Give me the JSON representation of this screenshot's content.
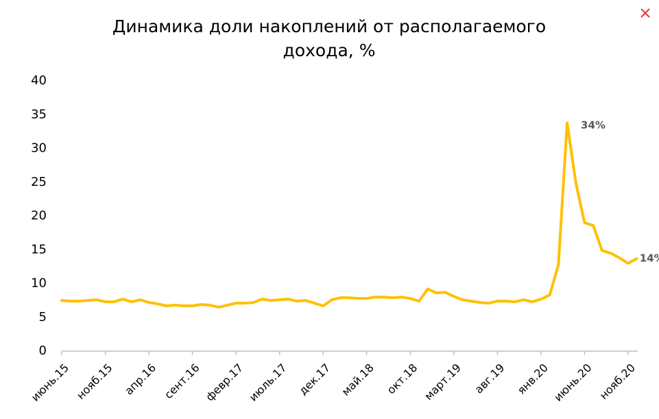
{
  "chart_data": {
    "type": "line",
    "title": [
      "Динамика доли накоплений от располагаемого",
      "дохода, %"
    ],
    "categories": [
      "июнь.15",
      null,
      null,
      null,
      null,
      "нояб.15",
      null,
      null,
      null,
      null,
      "апр.16",
      null,
      null,
      null,
      null,
      "сент.16",
      null,
      null,
      null,
      null,
      "февр.17",
      null,
      null,
      null,
      null,
      "июль.17",
      null,
      null,
      null,
      null,
      "дек.17",
      null,
      null,
      null,
      null,
      "май.18",
      null,
      null,
      null,
      null,
      "окт.18",
      null,
      null,
      null,
      null,
      "март.19",
      null,
      null,
      null,
      null,
      "авг.19",
      null,
      null,
      null,
      null,
      "янв.20",
      null,
      null,
      null,
      null,
      "июнь.20",
      null,
      null,
      null,
      null,
      "нояб.20",
      null
    ],
    "series": [
      {
        "color": "#ffc000",
        "values": [
          7.5,
          7.4,
          7.4,
          7.5,
          7.6,
          7.3,
          7.3,
          7.7,
          7.3,
          7.6,
          7.2,
          7.0,
          6.7,
          6.8,
          6.7,
          6.7,
          6.9,
          6.8,
          6.5,
          6.8,
          7.1,
          7.1,
          7.2,
          7.7,
          7.5,
          7.6,
          7.7,
          7.4,
          7.5,
          7.1,
          6.7,
          7.6,
          7.9,
          7.9,
          7.8,
          7.8,
          8.0,
          8.0,
          7.9,
          8.0,
          7.8,
          7.4,
          9.2,
          8.6,
          8.7,
          8.1,
          7.6,
          7.4,
          7.2,
          7.1,
          7.4,
          7.4,
          7.3,
          7.6,
          7.3,
          7.7,
          8.3,
          12.8,
          33.8,
          24.9,
          19.0,
          18.6,
          14.9,
          14.5,
          13.8,
          13.0,
          13.7
        ],
        "value_labels": [
          null,
          null,
          null,
          null,
          null,
          null,
          null,
          null,
          null,
          null,
          null,
          null,
          null,
          null,
          null,
          null,
          null,
          null,
          null,
          null,
          null,
          null,
          null,
          null,
          null,
          null,
          null,
          null,
          null,
          null,
          null,
          null,
          null,
          null,
          null,
          null,
          null,
          null,
          null,
          null,
          null,
          null,
          null,
          null,
          null,
          null,
          null,
          null,
          null,
          null,
          null,
          null,
          null,
          null,
          null,
          null,
          null,
          null,
          "34%",
          null,
          null,
          null,
          null,
          null,
          null,
          null,
          "14%"
        ]
      }
    ],
    "ylim": [
      0,
      40
    ],
    "yticks": [
      0,
      5,
      10,
      15,
      20,
      25,
      30,
      35,
      40
    ],
    "grid": false
  }
}
